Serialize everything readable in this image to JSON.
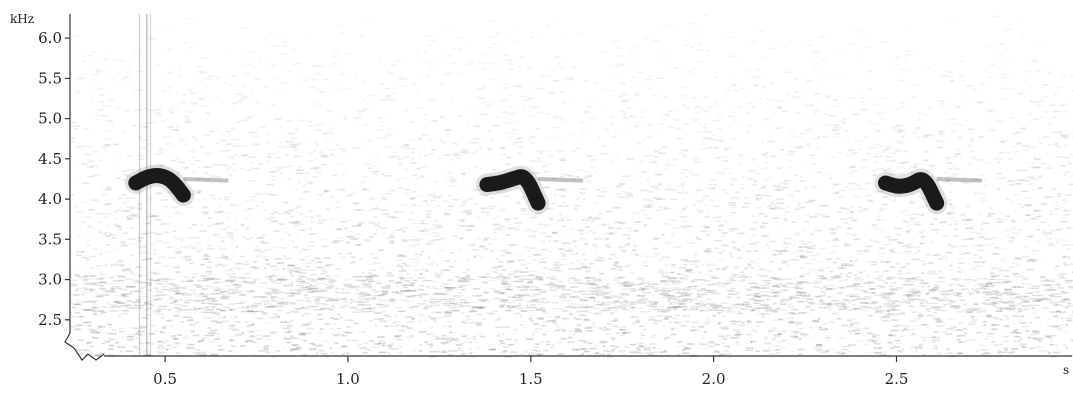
{
  "chart_data": {
    "type": "heatmap",
    "title": "",
    "xlabel": "s",
    "ylabel": "kHz",
    "xlim": [
      0.24,
      2.98
    ],
    "ylim": [
      2.05,
      6.3
    ],
    "x_ticks": [
      0.5,
      1.0,
      1.5,
      2.0,
      2.5
    ],
    "x_tick_labels": [
      "0.5",
      "1.0",
      "1.5",
      "2.0",
      "2.5"
    ],
    "y_ticks": [
      2.5,
      3.0,
      3.5,
      4.0,
      4.5,
      5.0,
      5.5,
      6.0
    ],
    "y_tick_labels": [
      "2.5",
      "3.0",
      "3.5",
      "4.0",
      "4.5",
      "5.0",
      "5.5",
      "6.0"
    ],
    "grid": false,
    "colors": {
      "background": "#ffffff",
      "intensity": "#1a1a1a",
      "axis": "#333333"
    },
    "calls": [
      {
        "start_s": 0.42,
        "end_s": 0.55,
        "freq_khz": [
          4.2,
          4.28,
          4.3,
          4.24,
          4.05
        ]
      },
      {
        "start_s": 1.38,
        "end_s": 1.52,
        "freq_khz": [
          4.18,
          4.2,
          4.25,
          4.3,
          3.95
        ]
      },
      {
        "start_s": 2.47,
        "end_s": 2.61,
        "freq_khz": [
          4.2,
          4.15,
          4.18,
          4.28,
          3.95
        ]
      }
    ]
  }
}
